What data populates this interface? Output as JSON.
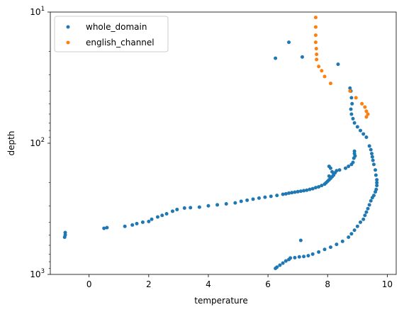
{
  "chart_data": {
    "type": "scatter",
    "xlabel": "temperature",
    "ylabel": "depth",
    "xlim": [
      -1.3,
      10.3
    ],
    "ylim": [
      1000,
      10
    ],
    "yscale": "log",
    "inverted_y": true,
    "x_ticks": [
      0,
      2,
      4,
      6,
      8,
      10
    ],
    "x_tick_labels": [
      "0",
      "2",
      "4",
      "6",
      "8",
      "10"
    ],
    "y_ticks": [
      10,
      100,
      1000
    ],
    "y_tick_labels": [
      "10^1",
      "10^2",
      "10^3"
    ],
    "grid": false,
    "legend": "top-left",
    "series": [
      {
        "name": "whole_domain",
        "color": "#1f77b4",
        "points": [
          [
            6.25,
            22.5
          ],
          [
            6.7,
            17
          ],
          [
            7.15,
            22
          ],
          [
            8.35,
            25
          ],
          [
            8.75,
            38
          ],
          [
            8.78,
            40
          ],
          [
            8.8,
            45
          ],
          [
            8.82,
            50
          ],
          [
            8.78,
            55
          ],
          [
            8.8,
            60
          ],
          [
            8.85,
            65
          ],
          [
            8.9,
            70
          ],
          [
            9.0,
            75
          ],
          [
            9.1,
            80
          ],
          [
            9.2,
            85
          ],
          [
            9.3,
            90
          ],
          [
            9.4,
            105
          ],
          [
            9.45,
            112
          ],
          [
            9.48,
            120
          ],
          [
            9.5,
            127
          ],
          [
            9.52,
            135
          ],
          [
            9.55,
            145
          ],
          [
            9.6,
            160
          ],
          [
            9.62,
            175
          ],
          [
            9.65,
            190
          ],
          [
            9.65,
            200
          ],
          [
            9.65,
            210
          ],
          [
            9.63,
            225
          ],
          [
            9.6,
            235
          ],
          [
            9.55,
            250
          ],
          [
            9.5,
            260
          ],
          [
            9.45,
            275
          ],
          [
            9.4,
            295
          ],
          [
            9.35,
            315
          ],
          [
            9.3,
            335
          ],
          [
            9.25,
            355
          ],
          [
            9.2,
            380
          ],
          [
            9.1,
            400
          ],
          [
            9.0,
            430
          ],
          [
            8.9,
            460
          ],
          [
            8.8,
            490
          ],
          [
            8.7,
            520
          ],
          [
            8.5,
            560
          ],
          [
            8.3,
            590
          ],
          [
            8.1,
            620
          ],
          [
            7.9,
            645
          ],
          [
            7.7,
            675
          ],
          [
            7.5,
            700
          ],
          [
            7.35,
            720
          ],
          [
            7.2,
            730
          ],
          [
            7.05,
            735
          ],
          [
            6.9,
            745
          ],
          [
            6.75,
            750
          ],
          [
            6.7,
            770
          ],
          [
            6.6,
            790
          ],
          [
            6.5,
            820
          ],
          [
            6.4,
            850
          ],
          [
            6.3,
            880
          ],
          [
            6.25,
            900
          ],
          [
            8.9,
            115
          ],
          [
            8.9,
            120
          ],
          [
            8.92,
            125
          ],
          [
            8.88,
            130
          ],
          [
            8.85,
            140
          ],
          [
            8.8,
            145
          ],
          [
            8.7,
            150
          ],
          [
            8.6,
            155
          ],
          [
            8.4,
            160
          ],
          [
            8.3,
            162
          ],
          [
            8.25,
            168
          ],
          [
            8.2,
            175
          ],
          [
            8.15,
            180
          ],
          [
            8.1,
            185
          ],
          [
            8.05,
            190
          ],
          [
            8.0,
            195
          ],
          [
            7.95,
            200
          ],
          [
            7.9,
            205
          ],
          [
            7.8,
            210
          ],
          [
            7.7,
            215
          ],
          [
            7.6,
            218
          ],
          [
            7.5,
            222
          ],
          [
            7.4,
            225
          ],
          [
            7.3,
            228
          ],
          [
            7.2,
            230
          ],
          [
            7.1,
            232
          ],
          [
            7.0,
            234
          ],
          [
            6.9,
            236
          ],
          [
            6.8,
            238
          ],
          [
            6.7,
            240
          ],
          [
            6.6,
            243
          ],
          [
            6.5,
            245
          ],
          [
            6.3,
            250
          ],
          [
            6.1,
            254
          ],
          [
            5.9,
            258
          ],
          [
            5.7,
            262
          ],
          [
            5.5,
            267
          ],
          [
            5.3,
            272
          ],
          [
            5.1,
            277
          ],
          [
            4.9,
            285
          ],
          [
            4.6,
            290
          ],
          [
            4.3,
            295
          ],
          [
            4.0,
            300
          ],
          [
            3.7,
            307
          ],
          [
            3.4,
            310
          ],
          [
            3.2,
            312
          ],
          [
            2.95,
            320
          ],
          [
            2.8,
            330
          ],
          [
            2.6,
            345
          ],
          [
            2.45,
            355
          ],
          [
            2.3,
            365
          ],
          [
            2.1,
            380
          ],
          [
            2.0,
            395
          ],
          [
            1.8,
            400
          ],
          [
            1.6,
            410
          ],
          [
            1.45,
            420
          ],
          [
            1.2,
            430
          ],
          [
            0.6,
            440
          ],
          [
            0.5,
            445
          ],
          [
            -0.8,
            480
          ],
          [
            -0.8,
            500
          ],
          [
            -0.82,
            520
          ],
          [
            8.05,
            150
          ],
          [
            8.1,
            155
          ],
          [
            8.15,
            165
          ],
          [
            8.2,
            172
          ],
          [
            8.05,
            178
          ],
          [
            7.1,
            550
          ]
        ]
      },
      {
        "name": "english_channel",
        "color": "#ff7f0e",
        "points": [
          [
            7.6,
            11
          ],
          [
            7.6,
            13
          ],
          [
            7.6,
            15
          ],
          [
            7.6,
            17
          ],
          [
            7.62,
            19
          ],
          [
            7.63,
            21
          ],
          [
            7.63,
            23
          ],
          [
            7.7,
            26
          ],
          [
            7.8,
            28
          ],
          [
            7.9,
            31
          ],
          [
            8.1,
            35
          ],
          [
            8.75,
            40
          ],
          [
            8.95,
            45
          ],
          [
            9.15,
            50
          ],
          [
            9.25,
            53
          ],
          [
            9.3,
            57
          ],
          [
            9.35,
            60
          ],
          [
            9.3,
            63
          ]
        ]
      }
    ]
  }
}
